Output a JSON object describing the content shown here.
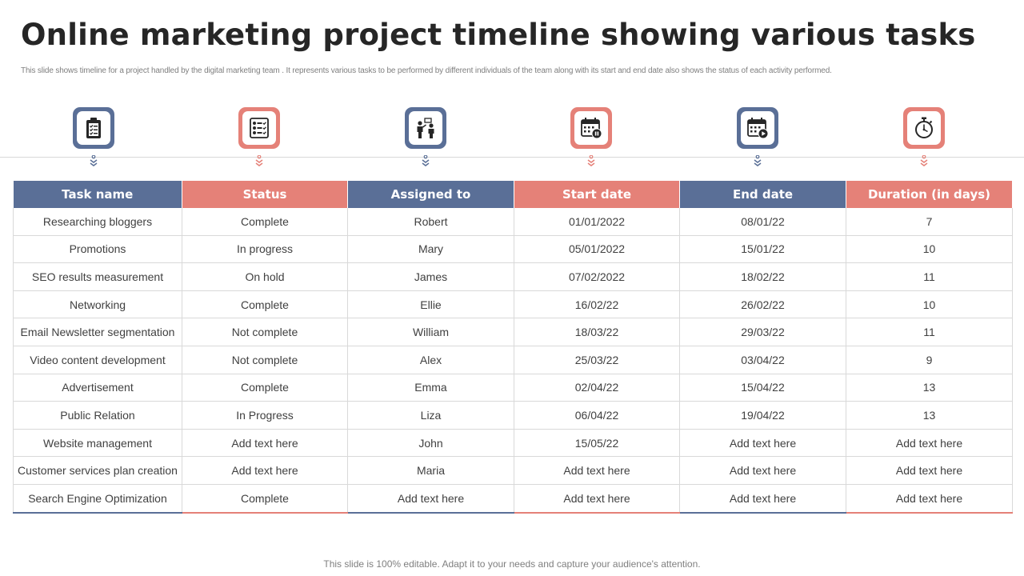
{
  "slide": {
    "title": "Online marketing project timeline showing various tasks",
    "subtitle": "This slide shows timeline for a project handled by the digital marketing team . It represents various tasks to be performed by different individuals of the team along  with its start and end date also shows the status of each activity performed.",
    "footer": "This slide is 100% editable. Adapt it to your needs and capture your audience's attention."
  },
  "colors": {
    "blue": "#5a6f97",
    "red": "#e58178"
  },
  "icons": [
    {
      "name": "clipboard-checklist-icon",
      "color": "blue"
    },
    {
      "name": "task-list-icon",
      "color": "red"
    },
    {
      "name": "presenter-audience-icon",
      "color": "blue"
    },
    {
      "name": "calendar-pause-icon",
      "color": "red"
    },
    {
      "name": "calendar-play-icon",
      "color": "blue"
    },
    {
      "name": "stopwatch-icon",
      "color": "red"
    }
  ],
  "table": {
    "headers": [
      "Task name",
      "Status",
      "Assigned to",
      "Start date",
      "End date",
      "Duration (in days)"
    ],
    "rows": [
      [
        "Researching bloggers",
        "Complete",
        "Robert",
        "01/01/2022",
        "08/01/22",
        "7"
      ],
      [
        "Promotions",
        "In progress",
        "Mary",
        "05/01/2022",
        "15/01/22",
        "10"
      ],
      [
        "SEO results measurement",
        "On hold",
        "James",
        "07/02/2022",
        "18/02/22",
        "11"
      ],
      [
        "Networking",
        "Complete",
        "Ellie",
        "16/02/22",
        "26/02/22",
        "10"
      ],
      [
        "Email Newsletter segmentation",
        "Not complete",
        "William",
        "18/03/22",
        "29/03/22",
        "11"
      ],
      [
        "Video content development",
        "Not complete",
        "Alex",
        "25/03/22",
        "03/04/22",
        "9"
      ],
      [
        "Advertisement",
        "Complete",
        "Emma",
        "02/04/22",
        "15/04/22",
        "13"
      ],
      [
        "Public Relation",
        "In Progress",
        "Liza",
        "06/04/22",
        "19/04/22",
        "13"
      ],
      [
        "Website management",
        "Add text here",
        "John",
        "15/05/22",
        "Add text here",
        "Add text here"
      ],
      [
        "Customer services  plan creation",
        "Add text here",
        "Maria",
        "Add text here",
        "Add text here",
        "Add text here"
      ],
      [
        "Search Engine Optimization",
        "Complete",
        "Add text here",
        "Add text here",
        "Add text here",
        "Add text here"
      ]
    ]
  }
}
